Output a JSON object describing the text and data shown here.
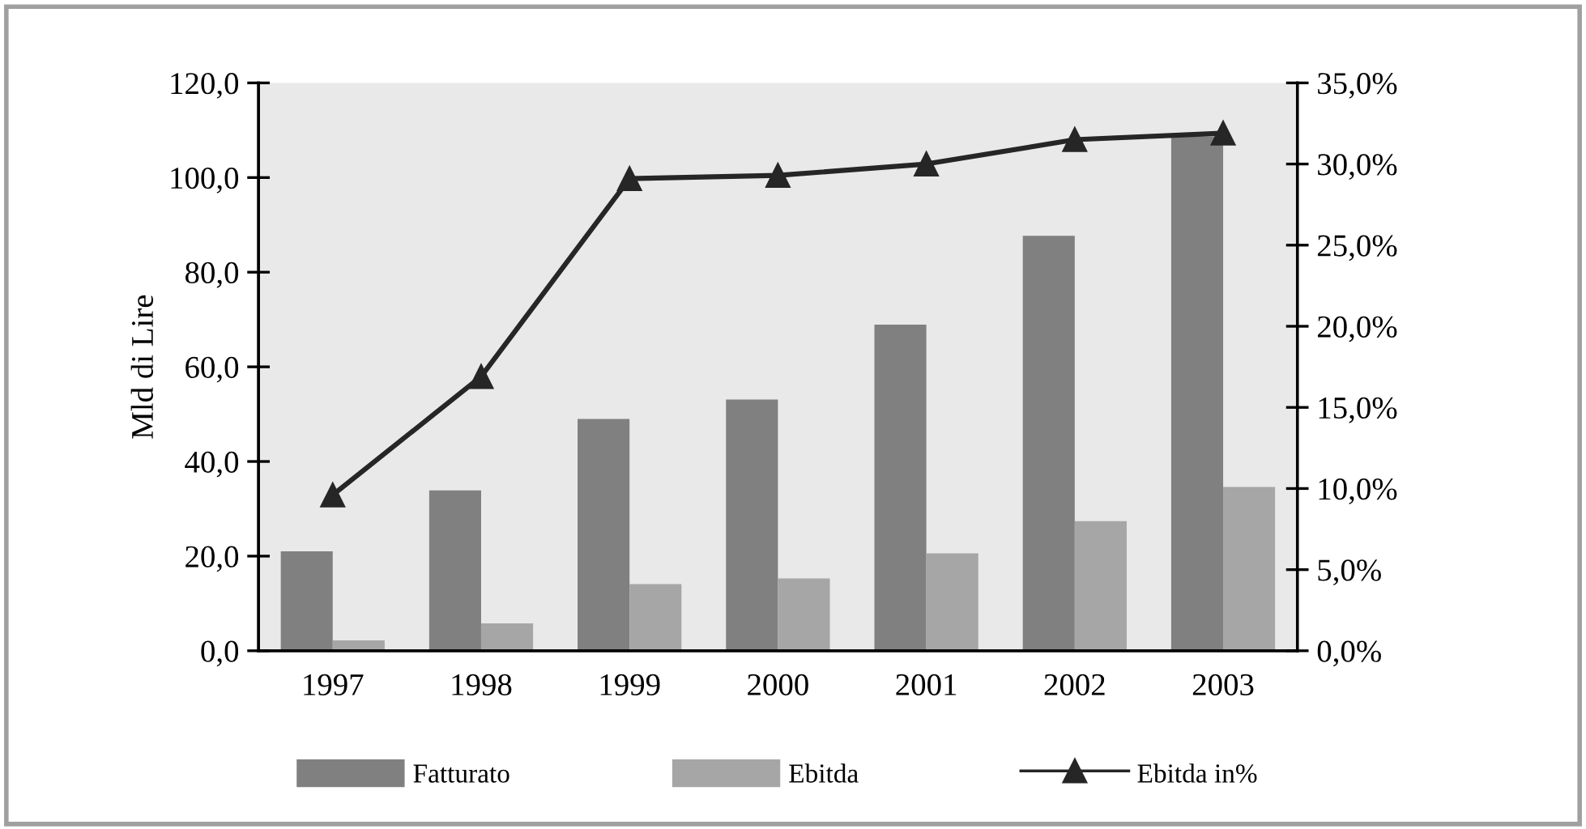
{
  "chart_data": {
    "type": "bar",
    "ylabel": "Mld di Lire",
    "categories": [
      "1997",
      "1998",
      "1999",
      "2000",
      "2001",
      "2002",
      "2003"
    ],
    "series": [
      {
        "name": "Fatturato",
        "color": "#808080",
        "values": [
          21.0,
          33.9,
          49.0,
          53.1,
          68.9,
          87.7,
          108.7
        ]
      },
      {
        "name": "Ebitda",
        "color": "#a6a6a6",
        "values": [
          2.2,
          5.8,
          14.1,
          15.3,
          20.6,
          27.4,
          34.6
        ]
      },
      {
        "name": "Ebitda in%",
        "type": "line",
        "axis": "y2",
        "color": "#262626",
        "marker": "triangle",
        "values": [
          9.6,
          16.9,
          29.1,
          29.3,
          30.0,
          31.5,
          31.9
        ]
      }
    ],
    "ylim": [
      0,
      120
    ],
    "yticks": [
      {
        "value": 0,
        "label": "0,0"
      },
      {
        "value": 20,
        "label": "20,0"
      },
      {
        "value": 40,
        "label": "40,0"
      },
      {
        "value": 60,
        "label": "60,0"
      },
      {
        "value": 80,
        "label": "80,0"
      },
      {
        "value": 100,
        "label": "100,0"
      },
      {
        "value": 120,
        "label": "120,0"
      }
    ],
    "y2lim": [
      0,
      35
    ],
    "y2ticks": [
      {
        "value": 0,
        "label": "0,0%"
      },
      {
        "value": 5,
        "label": "5,0%"
      },
      {
        "value": 10,
        "label": "10,0%"
      },
      {
        "value": 15,
        "label": "15,0%"
      },
      {
        "value": 20,
        "label": "20,0%"
      },
      {
        "value": 25,
        "label": "25,0%"
      },
      {
        "value": 30,
        "label": "30,0%"
      },
      {
        "value": 35,
        "label": "35,0%"
      }
    ],
    "grid": false,
    "legend": "bottom"
  }
}
